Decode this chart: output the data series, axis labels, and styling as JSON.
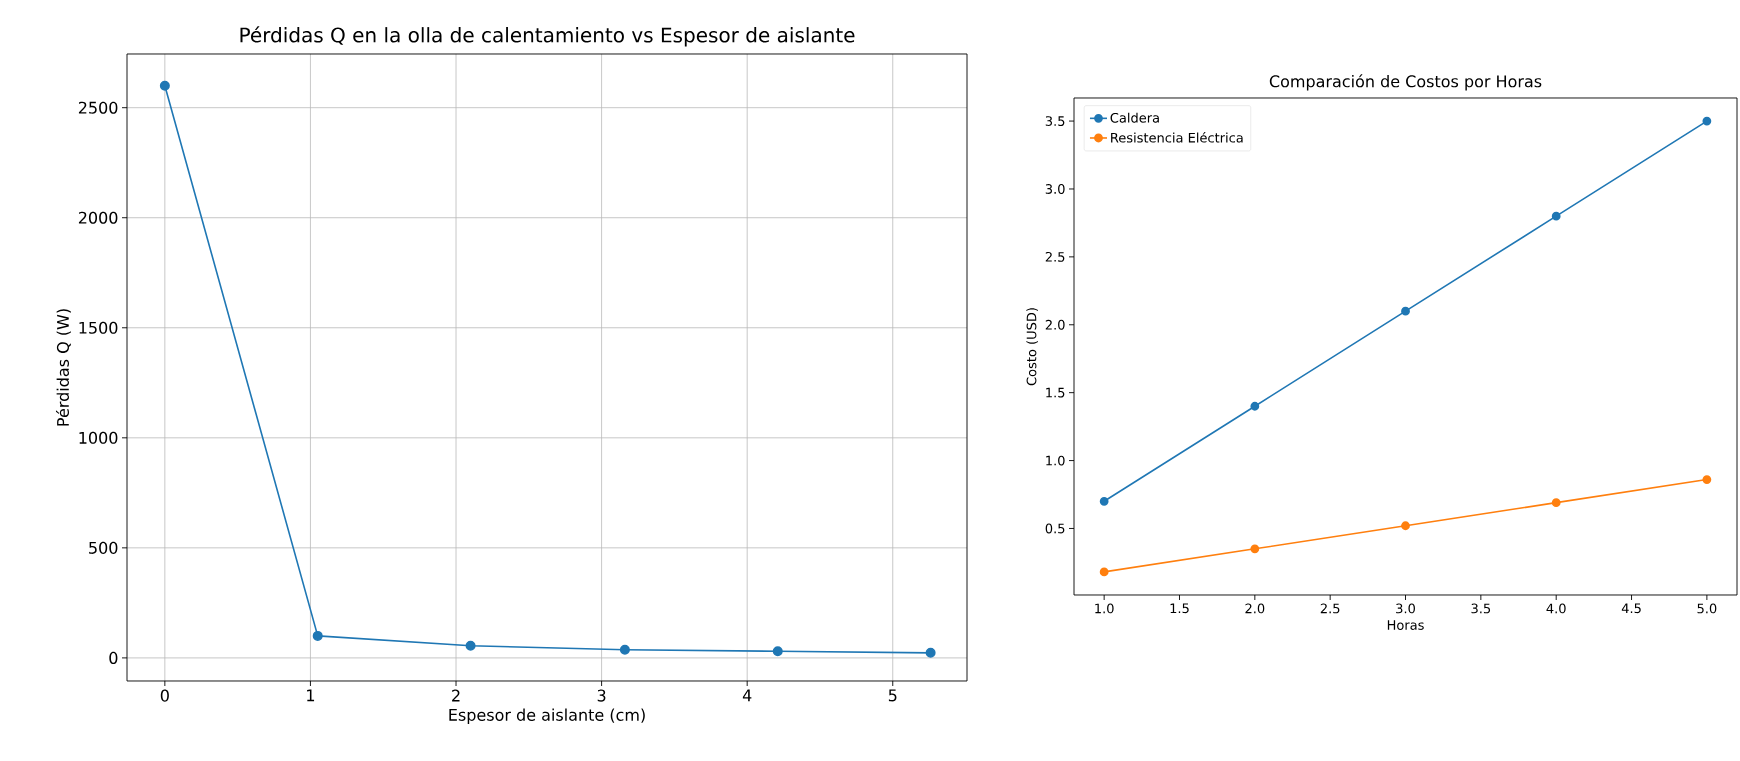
{
  "chart_data": [
    {
      "type": "line",
      "title": "Pérdidas Q en la olla de calentamiento vs Espesor de aislante",
      "xlabel": "Espesor de aislante (cm)",
      "ylabel": "Pérdidas Q (W)",
      "x": [
        0,
        1.05,
        2.1,
        3.16,
        4.21,
        5.26
      ],
      "values": [
        2600,
        100,
        55,
        37,
        30,
        23
      ],
      "color": "#1f77b4",
      "xlim": [
        -0.26,
        5.51
      ],
      "ylim": [
        -105,
        2744
      ],
      "xticks": [
        0,
        1,
        2,
        3,
        4,
        5
      ],
      "yticks": [
        0,
        500,
        1000,
        1500,
        2000,
        2500
      ],
      "grid": true,
      "marker": "circle",
      "line_style": "solid"
    },
    {
      "type": "line",
      "title": "Comparación de Costos por Horas",
      "xlabel": "Horas",
      "ylabel": "Costo (USD)",
      "x": [
        1,
        2,
        3,
        4,
        5
      ],
      "series": [
        {
          "name": "Caldera",
          "color": "#1f77b4",
          "values": [
            0.7,
            1.4,
            2.1,
            2.8,
            3.5
          ]
        },
        {
          "name": "Resistencia Eléctrica",
          "color": "#ff7f0e",
          "values": [
            0.18,
            0.35,
            0.52,
            0.69,
            0.86
          ]
        }
      ],
      "xlim": [
        0.8,
        5.2
      ],
      "ylim": [
        0.01,
        3.67
      ],
      "xticks": [
        {
          "value": 1,
          "label": "1.0"
        },
        {
          "value": 1.5,
          "label": "1.5"
        },
        {
          "value": 2,
          "label": "2.0"
        },
        {
          "value": 2.5,
          "label": "2.5"
        },
        {
          "value": 3,
          "label": "3.0"
        },
        {
          "value": 3.5,
          "label": "3.5"
        },
        {
          "value": 4,
          "label": "4.0"
        },
        {
          "value": 4.5,
          "label": "4.5"
        },
        {
          "value": 5,
          "label": "5.0"
        }
      ],
      "yticks": [
        {
          "value": 0.5,
          "label": "0.5"
        },
        {
          "value": 1,
          "label": "1.0"
        },
        {
          "value": 1.5,
          "label": "1.5"
        },
        {
          "value": 2,
          "label": "2.0"
        },
        {
          "value": 2.5,
          "label": "2.5"
        },
        {
          "value": 3,
          "label": "3.0"
        },
        {
          "value": 3.5,
          "label": "3.5"
        }
      ],
      "legend": "top left",
      "marker": "circle",
      "line_style": "solid"
    }
  ]
}
